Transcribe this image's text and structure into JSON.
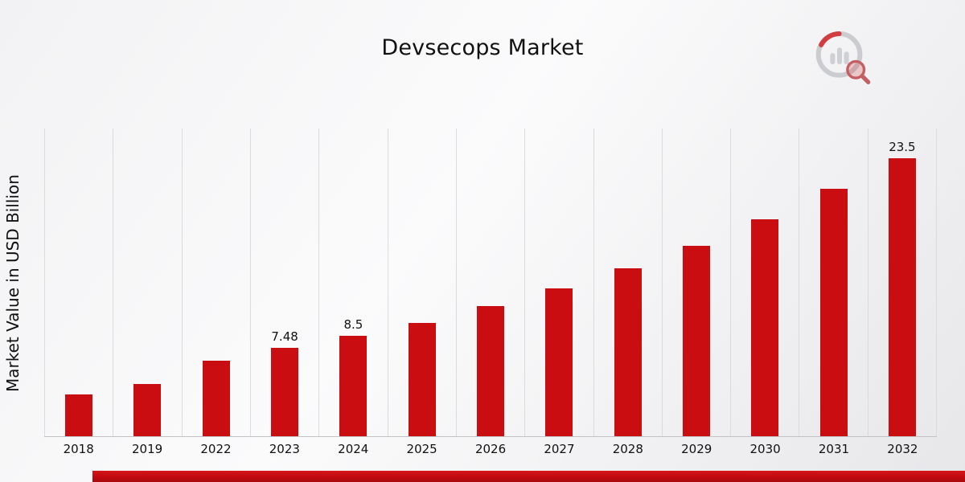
{
  "page": {
    "title": "Devsecops Market"
  },
  "chart_data": {
    "type": "bar",
    "title": "Devsecops Market",
    "xlabel": "",
    "ylabel": "Market Value in USD Billion",
    "ylim": [
      0,
      26
    ],
    "grid": "vertical-gridlines",
    "legend": "none",
    "bar_color": "#c90d10",
    "categories": [
      "2018",
      "2019",
      "2022",
      "2023",
      "2024",
      "2025",
      "2026",
      "2027",
      "2028",
      "2029",
      "2030",
      "2031",
      "2032"
    ],
    "values": [
      3.5,
      4.4,
      6.4,
      7.48,
      8.5,
      9.6,
      11.0,
      12.5,
      14.2,
      16.1,
      18.3,
      20.9,
      23.5
    ],
    "shown_data_labels": {
      "2023": "7.48",
      "2024": "8.5",
      "2032": "23.5"
    }
  },
  "branding": {
    "logo_name": "bar-chart-magnifier-logo",
    "accent_color": "#c20b10"
  }
}
